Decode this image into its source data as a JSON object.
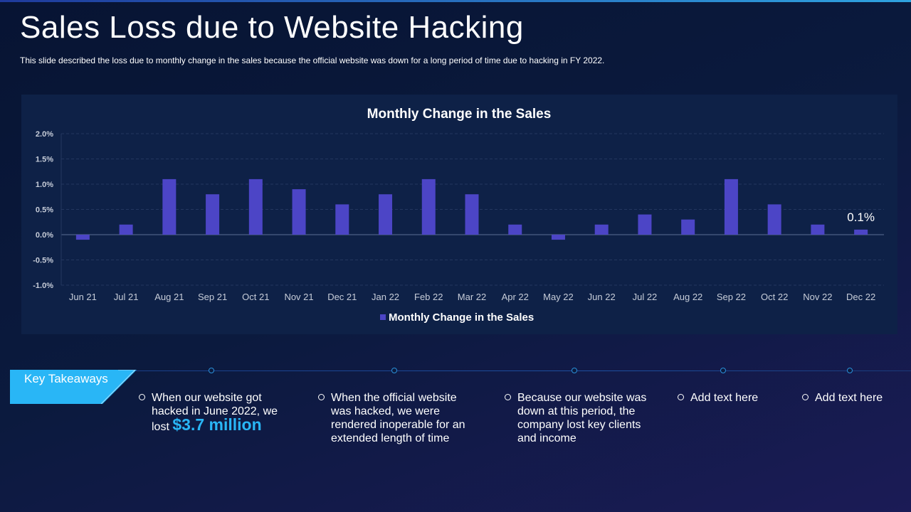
{
  "page": {
    "title": "Sales Loss due to Website Hacking",
    "subtitle": "This slide described the loss due to monthly change in the sales because the official website was down for a long period of time due to hacking in FY 2022."
  },
  "colors": {
    "background": "#0b1a3e",
    "panel": "#0e2147",
    "bar": "#4c45c6",
    "accent": "#29b6f6"
  },
  "chart_data": {
    "type": "bar",
    "title": "Monthly Change in the Sales",
    "categories": [
      "Jun 21",
      "Jul 21",
      "Aug 21",
      "Sep 21",
      "Oct 21",
      "Nov 21",
      "Dec 21",
      "Jan 22",
      "Feb 22",
      "Mar 22",
      "Apr 22",
      "May 22",
      "Jun 22",
      "Jul 22",
      "Aug 22",
      "Sep 22",
      "Oct 22",
      "Nov 22",
      "Dec 22"
    ],
    "series": [
      {
        "name": "Monthly Change in the Sales",
        "values": [
          -0.1,
          0.2,
          1.1,
          0.8,
          1.1,
          0.9,
          0.6,
          0.8,
          1.1,
          0.8,
          0.2,
          -0.1,
          0.2,
          0.4,
          0.3,
          1.1,
          0.6,
          0.2,
          0.1
        ],
        "color": "#4c45c6"
      }
    ],
    "ylim": [
      -1.0,
      2.0
    ],
    "yticks": [
      "2.0%",
      "1.5%",
      "1.0%",
      "0.5%",
      "0.0%",
      "-0.5%",
      "-1.0%"
    ],
    "data_labels": [
      {
        "category": "Dec 22",
        "text": "0.1%"
      }
    ],
    "grid": true,
    "legend": "bottom",
    "xlabel": "",
    "ylabel": ""
  },
  "takeaways": {
    "label": "Key Takeaways",
    "points": [
      {
        "text": "When our website got hacked in June 2022, we lost",
        "highlight": "$3.7 million"
      },
      {
        "text": "When the official website was hacked, we were rendered inoperable for an extended length of time"
      },
      {
        "text": "Because our website was down at this period, the company lost key clients and income"
      },
      {
        "text": "Add text here"
      },
      {
        "text": "Add text here"
      }
    ]
  }
}
